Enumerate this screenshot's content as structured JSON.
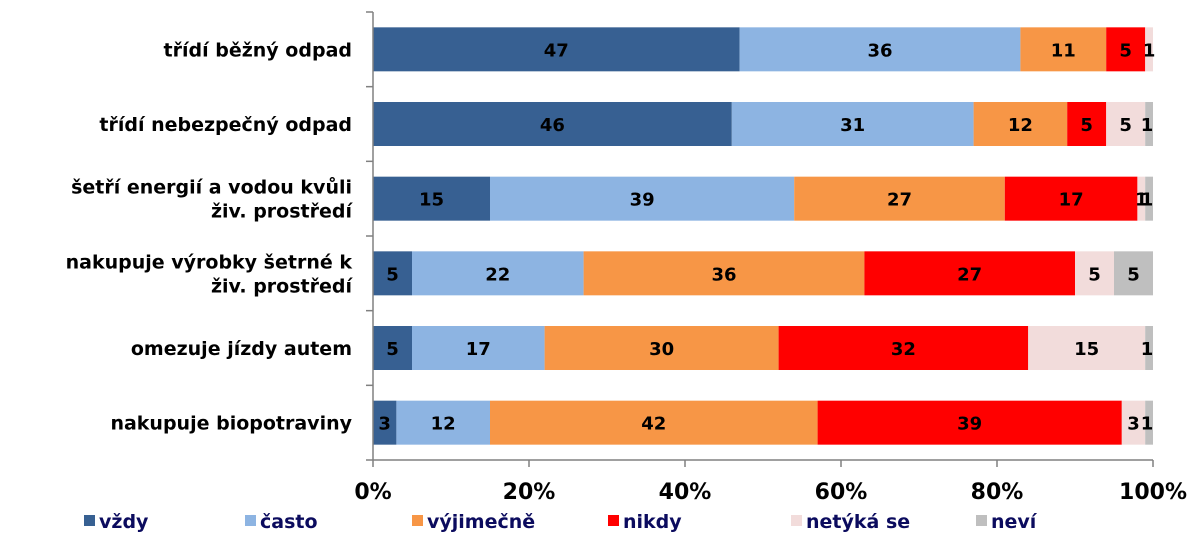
{
  "chart_data": {
    "type": "bar",
    "orientation": "horizontal",
    "stacked": true,
    "categories": [
      "třídí běžný odpad",
      "třídí nebezpečný odpad",
      "šetří energií a vodou kvůli živ. prostředí",
      "nakupuje výrobky šetrné k živ. prostředí",
      "omezuje jízdy autem",
      "nakupuje biopotraviny"
    ],
    "category_lines": [
      [
        "třídí běžný odpad"
      ],
      [
        "třídí nebezpečný odpad"
      ],
      [
        "šetří energií a vodou kvůli",
        "živ. prostředí"
      ],
      [
        "nakupuje výrobky šetrné k",
        "živ. prostředí"
      ],
      [
        "omezuje jízdy autem"
      ],
      [
        "nakupuje biopotraviny"
      ]
    ],
    "series": [
      {
        "name": "vždy",
        "color": "#376092",
        "values": [
          47,
          46,
          15,
          5,
          5,
          3
        ]
      },
      {
        "name": "často",
        "color": "#8DB4E2",
        "values": [
          36,
          31,
          39,
          22,
          17,
          12
        ]
      },
      {
        "name": "výjimečně",
        "color": "#F79646",
        "values": [
          11,
          12,
          27,
          36,
          30,
          42
        ]
      },
      {
        "name": "nikdy",
        "color": "#FF0000",
        "values": [
          5,
          5,
          17,
          27,
          32,
          39
        ]
      },
      {
        "name": "netýká se",
        "color": "#F2DCDB",
        "values": [
          1,
          5,
          1,
          5,
          15,
          3
        ]
      },
      {
        "name": "neví",
        "color": "#BFBFBF",
        "values": [
          0,
          1,
          1,
          5,
          1,
          1
        ]
      }
    ],
    "data_labels": [
      [
        "47",
        "36",
        "11",
        "5",
        "1",
        ""
      ],
      [
        "46",
        "31",
        "12",
        "5",
        "5",
        "1"
      ],
      [
        "15",
        "39",
        "27",
        "17",
        "1",
        "1"
      ],
      [
        "5",
        "22",
        "36",
        "27",
        "5",
        "5"
      ],
      [
        "5",
        "17",
        "30",
        "32",
        "15",
        "1"
      ],
      [
        "3",
        "12",
        "42",
        "39",
        "3",
        "1"
      ]
    ],
    "xlim": [
      0,
      100
    ],
    "x_ticks": [
      "0%",
      "20%",
      "40%",
      "60%",
      "80%",
      "100%"
    ],
    "grid": false,
    "legend_position": "bottom"
  }
}
